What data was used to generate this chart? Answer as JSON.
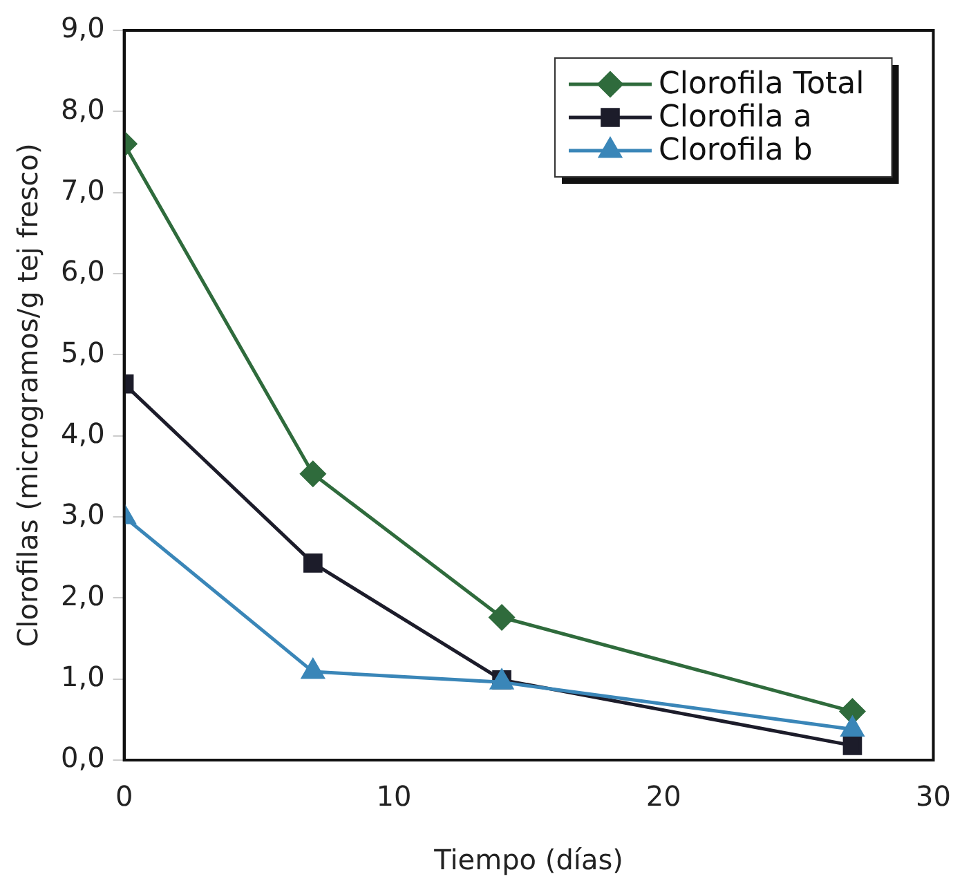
{
  "chart_data": {
    "type": "line",
    "xlabel": "Tiempo (días)",
    "ylabel": "Clorofilas (microgramos/g tej fresco)",
    "xlim": [
      0,
      30
    ],
    "xticks": [
      0,
      10,
      20,
      30
    ],
    "ylim": [
      0,
      9
    ],
    "yticks": [
      {
        "value": 0,
        "label": "0,0"
      },
      {
        "value": 1,
        "label": "1,0"
      },
      {
        "value": 2,
        "label": "2,0"
      },
      {
        "value": 3,
        "label": "3,0"
      },
      {
        "value": 4,
        "label": "4,0"
      },
      {
        "value": 5,
        "label": "5,0"
      },
      {
        "value": 6,
        "label": "6,0"
      },
      {
        "value": 7,
        "label": "7,0"
      },
      {
        "value": 8,
        "label": "8,0"
      },
      {
        "value": 9,
        "label": "9,0"
      }
    ],
    "x": [
      0,
      7,
      14,
      27
    ],
    "grid": false,
    "legend": "top right",
    "series": [
      {
        "name": "Clorofila Total",
        "color": "#2f6b3c",
        "marker": "diamond",
        "values": [
          7.6,
          3.53,
          1.76,
          0.6
        ]
      },
      {
        "name": "Clorofila a",
        "color": "#1c1c2a",
        "marker": "square",
        "values": [
          4.64,
          2.43,
          0.99,
          0.18
        ]
      },
      {
        "name": "Clorofila b",
        "color": "#3a86b8",
        "marker": "triangle",
        "values": [
          3.0,
          1.09,
          0.96,
          0.38
        ]
      }
    ]
  }
}
